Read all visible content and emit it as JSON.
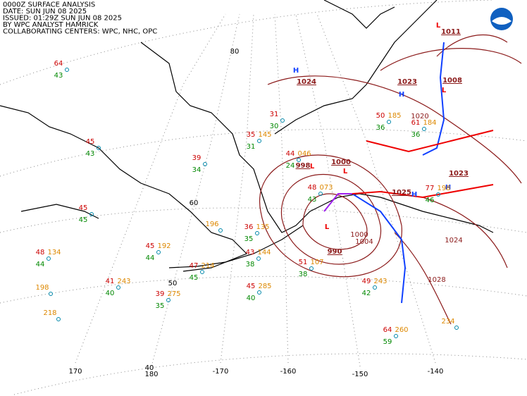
{
  "header": {
    "lines": [
      "0000Z SURFACE ANALYSIS",
      "DATE: SUN JUN 08 2025",
      "ISSUED: 01:29Z SUN JUN 08 2025",
      "BY WPC ANALYST HAMRICK",
      "COLLABORATING CENTERS: WPC, NHC, OPC"
    ]
  },
  "grid_labels": [
    "80",
    "60",
    "50",
    "40",
    "170",
    "180",
    "-170",
    "-160",
    "-150",
    "-140"
  ],
  "pressure_centers": [
    {
      "symbol": "H",
      "value": "1024"
    },
    {
      "symbol": "L",
      "value": "998"
    },
    {
      "symbol": "L",
      "value": "1000"
    },
    {
      "symbol": "L",
      "value": "990"
    },
    {
      "symbol": "H",
      "value": "1023"
    },
    {
      "symbol": "L",
      "value": "1011"
    },
    {
      "symbol": "L",
      "value": "1008"
    },
    {
      "symbol": "H",
      "value": "1025"
    },
    {
      "symbol": "H",
      "value": "1023"
    }
  ],
  "isobar_labels": [
    "1000",
    "1004",
    "1020",
    "1024",
    "1028"
  ],
  "stations": [
    {
      "temp": 64,
      "dew": 43
    },
    {
      "temp": 45,
      "dew": 43
    },
    {
      "temp": 45,
      "dew": 45
    },
    {
      "temp": 39,
      "dew": 34
    },
    {
      "temp": 48,
      "dew": 44,
      "pressure": "134"
    },
    {
      "temp": 41,
      "dew": 40,
      "pressure": "243"
    },
    {
      "temp": 39,
      "dew": 35,
      "pressure": "275"
    },
    {
      "temp": 45,
      "dew": 44,
      "pressure": "192"
    },
    {
      "temp": 47,
      "dew": 45,
      "pressure": "214"
    },
    {
      "temp": 43,
      "dew": 38,
      "pressure": "144"
    },
    {
      "temp": 51,
      "dew": 38,
      "pressure": "107"
    },
    {
      "temp": 45,
      "dew": 40,
      "pressure": "285"
    },
    {
      "temp": 49,
      "dew": 42,
      "pressure": "243"
    },
    {
      "temp": 64,
      "dew": 59,
      "pressure": "260"
    },
    {
      "temp": 36,
      "dew": 35,
      "pressure": "135"
    },
    {
      "temp": 50,
      "dew": 36,
      "pressure": "185"
    },
    {
      "temp": 61,
      "dew": 36,
      "pressure": "184"
    },
    {
      "temp": 44,
      "dew": 24,
      "pressure": "046"
    },
    {
      "temp": 48,
      "dew": 43,
      "pressure": "073"
    },
    {
      "temp": 31,
      "dew": 30
    },
    {
      "temp": 35,
      "dew": 31,
      "pressure": "145"
    },
    {
      "temp": 77,
      "dew": 46,
      "pressure": "198"
    },
    {
      "pressure": "198"
    },
    {
      "pressure": "218"
    },
    {
      "pressure": "196"
    },
    {
      "pressure": "234"
    }
  ]
}
